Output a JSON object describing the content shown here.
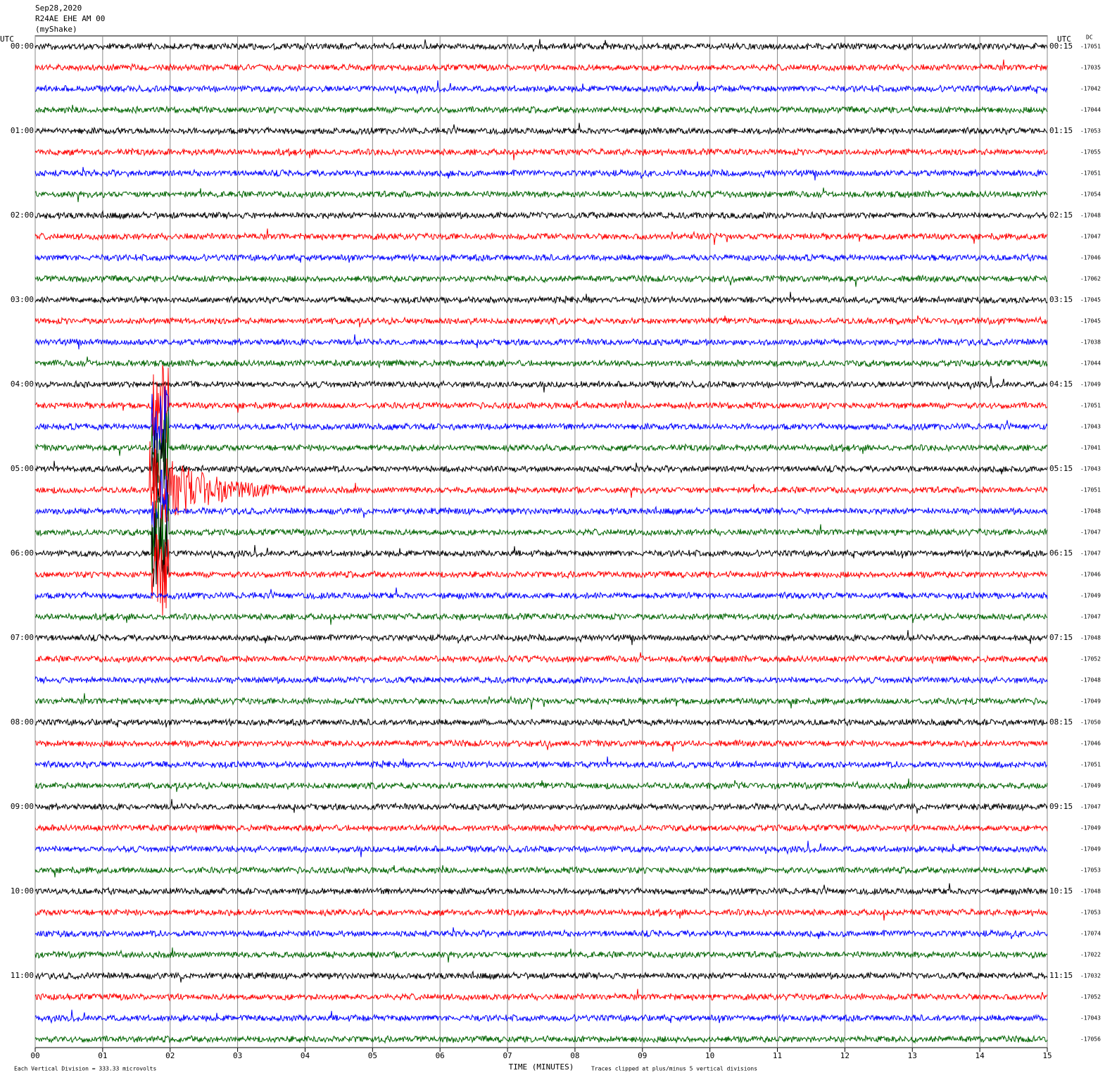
{
  "chart_data": {
    "type": "helicorder",
    "header": [
      "Sep28,2020",
      "R24AE EHE AM 00",
      "(myShake)"
    ],
    "left_axis_title": "UTC",
    "right_axis_title": "UTC",
    "dc_title": "DC",
    "left_labels": [
      "00:00",
      "01:00",
      "02:00",
      "03:00",
      "04:00",
      "05:00",
      "06:00",
      "07:00",
      "08:00",
      "09:00",
      "10:00",
      "11:00"
    ],
    "right_labels": [
      "00:15",
      "01:15",
      "02:15",
      "03:15",
      "04:15",
      "05:15",
      "06:15",
      "07:15",
      "08:15",
      "09:15",
      "10:15",
      "11:15"
    ],
    "dc_values": [
      -17051,
      -17035,
      -17042,
      -17044,
      -17053,
      -17055,
      -17051,
      -17054,
      -17048,
      -17047,
      -17046,
      -17062,
      -17045,
      -17045,
      -17038,
      -17044,
      -17049,
      -17051,
      -17043,
      -17041,
      -17043,
      -17051,
      -17048,
      -17047,
      -17047,
      -17046,
      -17049,
      -17047,
      -17048,
      -17052,
      -17048,
      -17049,
      -17050,
      -17046,
      -17051,
      -17049,
      -17047,
      -17049,
      -17049,
      -17053,
      -17048,
      -17053,
      -17074,
      -17022,
      -17032,
      -17052,
      -17043,
      -17056
    ],
    "colors": [
      "#000000",
      "#ff0000",
      "#0000ff",
      "#006400"
    ],
    "xlabel": "TIME (MINUTES)",
    "footer_left": "Each Vertical Division =  333.33 microvolts",
    "footer_right": "Traces clipped at plus/minus 5 vertical divisions",
    "xlim": [
      0,
      15
    ],
    "xticks": [
      {
        "value": 0,
        "label": "00"
      },
      {
        "value": 1,
        "label": "01"
      },
      {
        "value": 2,
        "label": "02"
      },
      {
        "value": 3,
        "label": "03"
      },
      {
        "value": 4,
        "label": "04"
      },
      {
        "value": 5,
        "label": "05"
      },
      {
        "value": 6,
        "label": "06"
      },
      {
        "value": 7,
        "label": "07"
      },
      {
        "value": 8,
        "label": "08"
      },
      {
        "value": 9,
        "label": "09"
      },
      {
        "value": 10,
        "label": "10"
      },
      {
        "value": 11,
        "label": "11"
      },
      {
        "value": 12,
        "label": "12"
      },
      {
        "value": 13,
        "label": "13"
      },
      {
        "value": 14,
        "label": "14"
      },
      {
        "value": 15,
        "label": "15"
      }
    ],
    "grid": true
  }
}
